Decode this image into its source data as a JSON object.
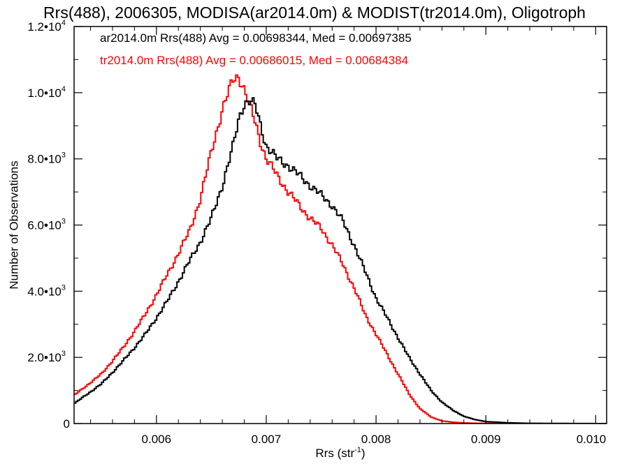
{
  "chart_data": {
    "type": "line",
    "title": "Rrs(488), 2006305, MODISA(ar2014.0m) & MODIST(tr2014.0m), Oligotroph",
    "xlabel": "Rrs (str-1)",
    "ylabel": "Number of Observations",
    "xlim": [
      0.00525,
      0.0101
    ],
    "ylim": [
      0,
      12000
    ],
    "x_ticks": [
      0.006,
      0.007,
      0.008,
      0.009,
      0.01
    ],
    "x_tick_labels": [
      "0.006",
      "0.007",
      "0.008",
      "0.009",
      "0.010"
    ],
    "y_ticks": [
      0,
      2000,
      4000,
      6000,
      8000,
      10000,
      12000
    ],
    "y_tick_labels": [
      "0",
      "2.0•10",
      "4.0•10",
      "6.0•10",
      "8.0•10",
      "1.0•10",
      "1.2•10"
    ],
    "y_tick_exponents": [
      "",
      "3",
      "3",
      "3",
      "3",
      "4",
      "4"
    ],
    "legend_position": "top-left",
    "series": [
      {
        "name": "ar2014.0m Rrs(488) Avg = 0.00698344, Med = 0.00697385",
        "color": "#000000",
        "x": [
          0.00525,
          0.0055,
          0.0057,
          0.0059,
          0.0061,
          0.0063,
          0.0064,
          0.0065,
          0.0066,
          0.0067,
          0.00675,
          0.0068,
          0.00685,
          0.0069,
          0.00695,
          0.007,
          0.0071,
          0.0072,
          0.0073,
          0.0074,
          0.0075,
          0.0076,
          0.0077,
          0.0078,
          0.0079,
          0.008,
          0.0081,
          0.0082,
          0.0083,
          0.0084,
          0.0085,
          0.0086,
          0.0087,
          0.0088,
          0.0089,
          0.009,
          0.0092,
          0.0094,
          0.0101
        ],
        "y": [
          600,
          1200,
          1900,
          2700,
          3700,
          4900,
          5500,
          6200,
          7200,
          8400,
          9200,
          9700,
          9750,
          9600,
          9000,
          8400,
          8000,
          7800,
          7500,
          7200,
          6900,
          6600,
          6100,
          5400,
          4600,
          3800,
          3200,
          2600,
          2000,
          1500,
          1000,
          650,
          400,
          220,
          120,
          60,
          25,
          8,
          0
        ]
      },
      {
        "name": "tr2014.0m Rrs(488) Avg = 0.00686015, Med = 0.00684384",
        "color": "#ff0000",
        "x": [
          0.00525,
          0.0055,
          0.0057,
          0.0059,
          0.0061,
          0.0063,
          0.0064,
          0.0065,
          0.0066,
          0.0067,
          0.00675,
          0.0068,
          0.00685,
          0.0069,
          0.00695,
          0.007,
          0.0071,
          0.0072,
          0.0073,
          0.0074,
          0.0075,
          0.0076,
          0.0077,
          0.0078,
          0.0079,
          0.008,
          0.0081,
          0.0082,
          0.0083,
          0.0084,
          0.0085,
          0.0086,
          0.0087,
          0.0088,
          0.0089,
          0.009,
          0.0092,
          0.0094,
          0.0101
        ],
        "y": [
          850,
          1500,
          2300,
          3300,
          4500,
          5800,
          6800,
          8200,
          9500,
          10400,
          10500,
          10100,
          9600,
          9100,
          8500,
          8000,
          7500,
          7000,
          6600,
          6200,
          5900,
          5400,
          4800,
          4100,
          3300,
          2700,
          2100,
          1500,
          900,
          450,
          200,
          80,
          40,
          20,
          10,
          5,
          2,
          1,
          0
        ]
      }
    ]
  }
}
